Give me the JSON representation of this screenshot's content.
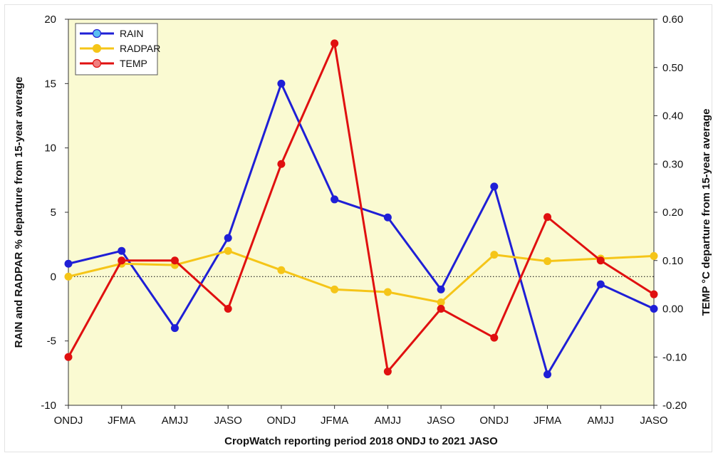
{
  "chart_data": {
    "type": "line",
    "categories": [
      "ONDJ",
      "JFMA",
      "AMJJ",
      "JASO",
      "ONDJ",
      "JFMA",
      "AMJJ",
      "JASO",
      "ONDJ",
      "JFMA",
      "AMJJ",
      "JASO"
    ],
    "xlabel": "CropWatch reporting period 2018 ONDJ to 2021 JASO",
    "ylabel_left": "RAIN and RADPAR % departure from 15-year average",
    "ylabel_right": "TEMP °C departure from 15-year average",
    "ylim_left": [
      -10,
      20
    ],
    "ylim_right": [
      -0.2,
      0.6
    ],
    "yticks_left": [
      "-10",
      "-5",
      "0",
      "5",
      "10",
      "15",
      "20"
    ],
    "yticks_right": [
      "-0.20",
      "-0.10",
      "0.00",
      "0.10",
      "0.20",
      "0.30",
      "0.40",
      "0.50",
      "0.60"
    ],
    "grid": false,
    "zero_line": "dotted",
    "background": "#fafad2",
    "legend_position": "top-left",
    "series": [
      {
        "name": "RAIN",
        "axis": "left",
        "color": "#1f1fd6",
        "marker_color": "#5bc0f0",
        "values": [
          1.0,
          2.0,
          -4.0,
          3.0,
          15.0,
          6.0,
          4.6,
          -1.0,
          7.0,
          -7.6,
          -0.6,
          -2.5
        ]
      },
      {
        "name": "RADPAR",
        "axis": "left",
        "color": "#f5c518",
        "marker_color": "#f5c518",
        "values": [
          0.0,
          1.0,
          0.9,
          2.0,
          0.5,
          -1.0,
          -1.2,
          -2.0,
          1.7,
          1.2,
          1.4,
          1.6
        ]
      },
      {
        "name": "TEMP",
        "axis": "right",
        "color": "#e01010",
        "marker_color": "#f08080",
        "values": [
          -0.1,
          0.1,
          0.1,
          0.0,
          0.3,
          0.55,
          -0.13,
          0.0,
          -0.06,
          0.19,
          0.1,
          0.03
        ]
      }
    ]
  }
}
